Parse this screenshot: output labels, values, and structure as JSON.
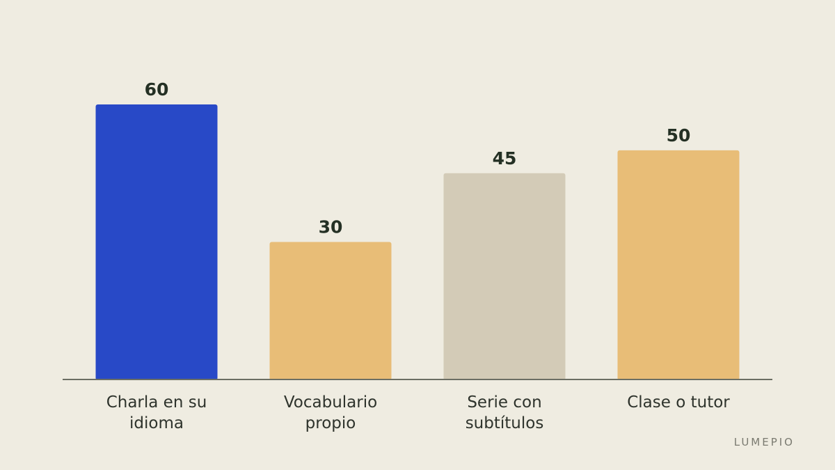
{
  "chart_data": {
    "type": "bar",
    "categories": [
      [
        "Charla en su",
        "idioma"
      ],
      [
        "Vocabulario",
        "propio"
      ],
      [
        "Serie con",
        "subtítulos"
      ],
      [
        "Clase o tutor"
      ]
    ],
    "values": [
      60,
      30,
      45,
      50
    ],
    "bar_colors": [
      "#2849c7",
      "#e8bd77",
      "#d3cbb7",
      "#e8bd77"
    ],
    "axis_color": "#6b6e63",
    "ylim": [
      0,
      60
    ],
    "grid": false,
    "title": "",
    "xlabel": "",
    "ylabel": ""
  },
  "brand": "LUMEPIO"
}
